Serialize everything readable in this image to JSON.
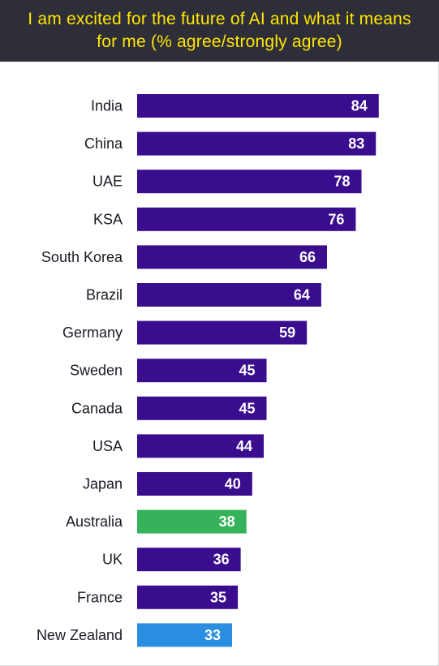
{
  "chart_data": {
    "type": "bar",
    "orientation": "horizontal",
    "title": "I am excited for the future of AI and what it means for me (% agree/strongly agree)",
    "categories": [
      "India",
      "China",
      "UAE",
      "KSA",
      "South Korea",
      "Brazil",
      "Germany",
      "Sweden",
      "Canada",
      "USA",
      "Japan",
      "Australia",
      "UK",
      "France",
      "New Zealand"
    ],
    "values": [
      84,
      83,
      78,
      76,
      66,
      64,
      59,
      45,
      45,
      44,
      40,
      38,
      36,
      35,
      33
    ],
    "bar_colors": [
      "#3a0d8f",
      "#3a0d8f",
      "#3a0d8f",
      "#3a0d8f",
      "#3a0d8f",
      "#3a0d8f",
      "#3a0d8f",
      "#3a0d8f",
      "#3a0d8f",
      "#3a0d8f",
      "#3a0d8f",
      "#36b35a",
      "#3a0d8f",
      "#3a0d8f",
      "#2a8fe0"
    ],
    "xlim": [
      0,
      100
    ],
    "grid": false,
    "xlabel": "",
    "ylabel": ""
  },
  "colors": {
    "title_band": "#2e2e38",
    "title_text": "#ffe600",
    "default_bar": "#3a0d8f",
    "highlight_australia": "#36b35a",
    "highlight_new_zealand": "#2a8fe0"
  }
}
